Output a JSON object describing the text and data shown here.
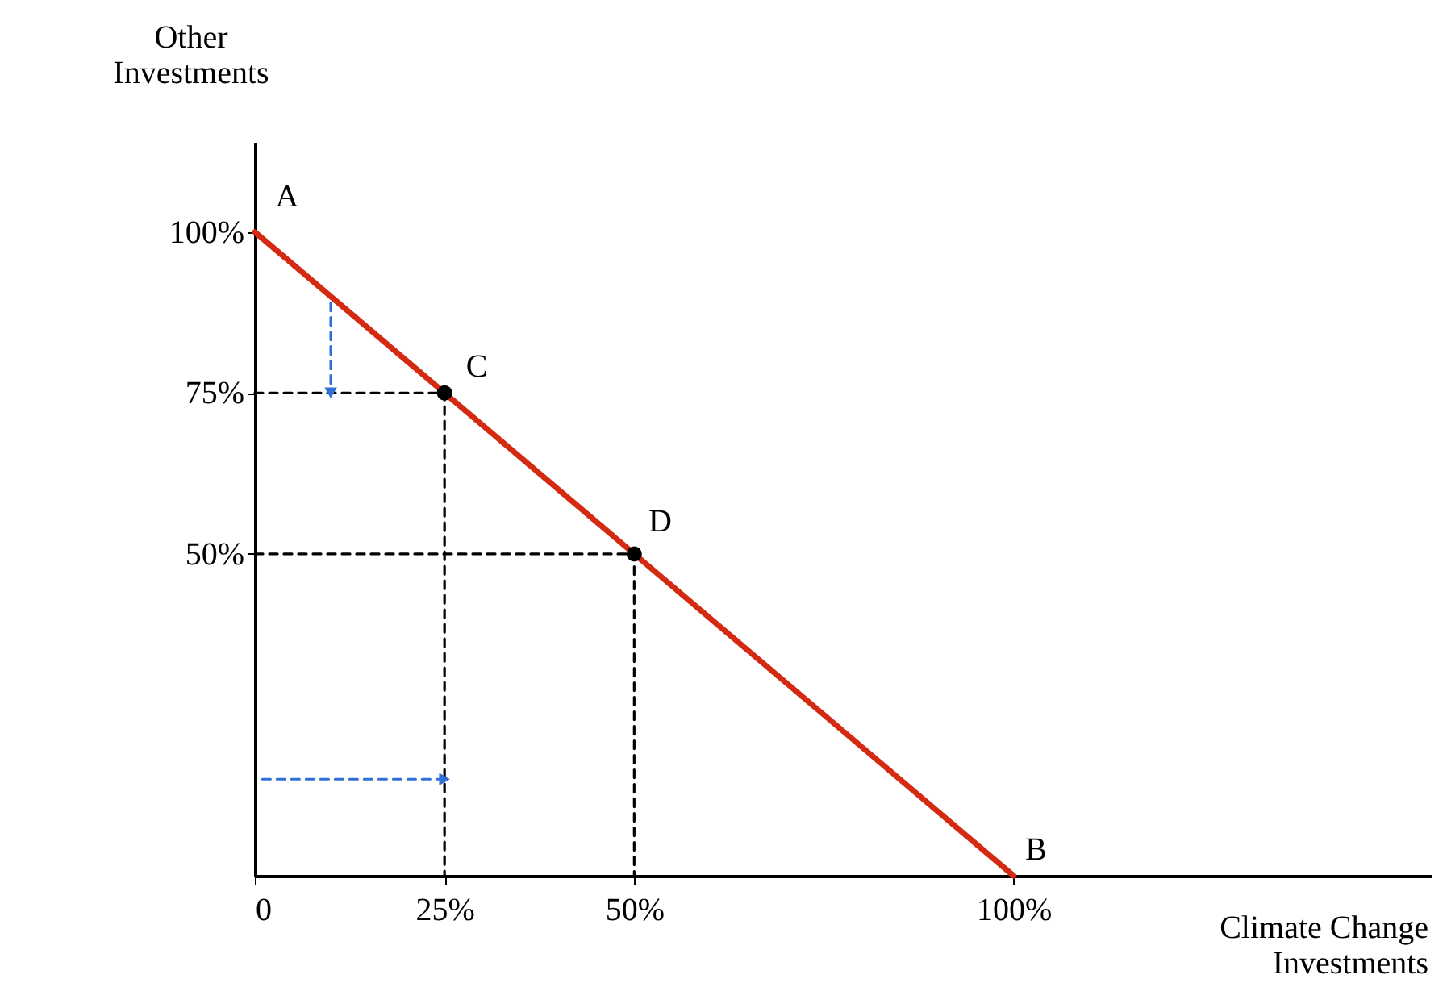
{
  "chart_data": {
    "type": "line",
    "xlabel": "Climate Change\nInvestments",
    "ylabel": "Other\nInvestments",
    "xlim": [
      0,
      155
    ],
    "ylim": [
      0,
      114
    ],
    "xticks": [
      {
        "value": 0,
        "label": "0"
      },
      {
        "value": 25,
        "label": "25%"
      },
      {
        "value": 50,
        "label": "50%"
      },
      {
        "value": 100,
        "label": "100%"
      }
    ],
    "yticks": [
      {
        "value": 50,
        "label": "50%"
      },
      {
        "value": 75,
        "label": "75%"
      },
      {
        "value": 100,
        "label": "100%"
      }
    ],
    "grid": false,
    "series": [
      {
        "color": "#000000",
        "line_style": "dashed",
        "x": [
          0,
          25,
          25
        ],
        "values": [
          75,
          75,
          0
        ]
      },
      {
        "color": "#000000",
        "line_style": "dashed",
        "x": [
          0,
          50,
          50
        ],
        "values": [
          50,
          50,
          0
        ]
      },
      {
        "color": "#2f6fd6",
        "line_style": "dashed",
        "marker": "triangle",
        "x": [
          1,
          25
        ],
        "values": [
          15,
          15
        ]
      },
      {
        "color": "#2f6fd6",
        "line_style": "dashed",
        "marker": "triangle",
        "x": [
          10,
          10
        ],
        "values": [
          89,
          75
        ]
      },
      {
        "color": "#d42a12",
        "line_style": "solid",
        "x": [
          0,
          100
        ],
        "values": [
          100,
          0
        ]
      },
      {
        "type": "scatter",
        "color": "#000000",
        "marker": "circle",
        "x": [
          25,
          50
        ],
        "values": [
          75,
          50
        ]
      }
    ],
    "annotations": [
      {
        "text": "A",
        "x": 0,
        "y": 100
      },
      {
        "text": "B",
        "x": 100,
        "y": 0
      },
      {
        "text": "C",
        "x": 25,
        "y": 75
      },
      {
        "text": "D",
        "x": 50,
        "y": 50
      }
    ]
  }
}
